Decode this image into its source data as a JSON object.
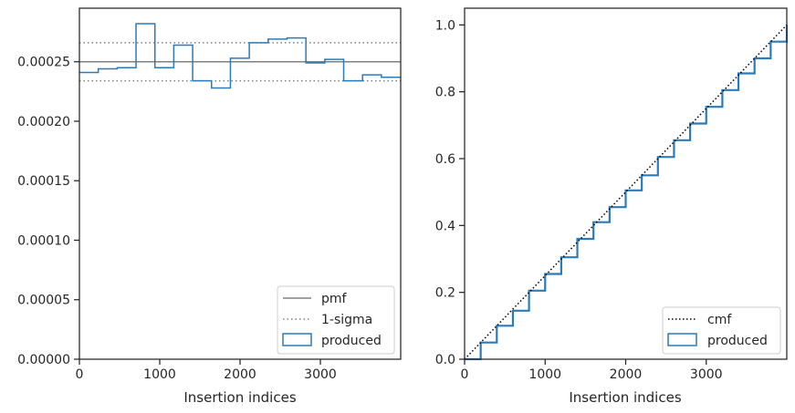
{
  "colors": {
    "produced": "#2b7bba",
    "pmf": "#808080",
    "sigma": "#808080",
    "cmf": "#000000",
    "axis": "#262626"
  },
  "chart_data": [
    {
      "type": "histogram",
      "xlabel": "Insertion indices",
      "ylabel": "",
      "xlim": [
        0,
        4000
      ],
      "ylim": [
        0,
        0.000295
      ],
      "x_ticks": [
        0,
        1000,
        2000,
        3000
      ],
      "x_tick_labels": [
        "0",
        "1000",
        "2000",
        "3000"
      ],
      "y_ticks": [
        0,
        5e-05,
        0.0001,
        0.00015,
        0.0002,
        0.00025
      ],
      "y_tick_labels": [
        "0.00000",
        "0.00005",
        "0.00010",
        "0.00015",
        "0.00020",
        "0.00025"
      ],
      "bin_edges": [
        0,
        235,
        470,
        705,
        940,
        1175,
        1410,
        1645,
        1880,
        2115,
        2350,
        2585,
        2820,
        3055,
        3290,
        3525,
        3760,
        4000
      ],
      "series": [
        {
          "name": "produced",
          "style": "step",
          "values": [
            0.000241,
            0.000244,
            0.000245,
            0.000282,
            0.000245,
            0.000264,
            0.000234,
            0.000228,
            0.000253,
            0.000266,
            0.000269,
            0.00027,
            0.000249,
            0.000252,
            0.000234,
            0.000239,
            0.000237
          ]
        },
        {
          "name": "pmf",
          "style": "solid",
          "y": 0.00025
        },
        {
          "name": "1-sigma",
          "style": "dotted",
          "y": [
            0.000234,
            0.000266
          ]
        }
      ],
      "legend": {
        "placement": "lower-right",
        "entries": [
          "pmf",
          "1-sigma",
          "produced"
        ]
      },
      "grid": false
    },
    {
      "type": "line",
      "xlabel": "Insertion indices",
      "ylabel": "",
      "xlim": [
        0,
        4000
      ],
      "ylim": [
        0,
        1.05
      ],
      "x_ticks": [
        0,
        1000,
        2000,
        3000
      ],
      "x_tick_labels": [
        "0",
        "1000",
        "2000",
        "3000"
      ],
      "y_ticks": [
        0,
        0.2,
        0.4,
        0.6,
        0.8,
        1.0
      ],
      "y_tick_labels": [
        "0.0",
        "0.2",
        "0.4",
        "0.6",
        "0.8",
        "1.0"
      ],
      "series": [
        {
          "name": "cmf",
          "style": "dotted",
          "x": [
            0,
            4000
          ],
          "y": [
            0,
            1.0
          ]
        },
        {
          "name": "produced",
          "style": "step",
          "x": [
            0,
            200,
            400,
            600,
            800,
            1000,
            1200,
            1400,
            1600,
            1800,
            2000,
            2200,
            2400,
            2600,
            2800,
            3000,
            3200,
            3400,
            3600,
            3800,
            4000
          ],
          "y": [
            0,
            0.05,
            0.1,
            0.145,
            0.205,
            0.255,
            0.305,
            0.36,
            0.41,
            0.455,
            0.505,
            0.55,
            0.605,
            0.655,
            0.705,
            0.755,
            0.805,
            0.855,
            0.9,
            0.95,
            1.0
          ]
        }
      ],
      "legend": {
        "placement": "lower-right",
        "entries": [
          "cmf",
          "produced"
        ]
      },
      "grid": false
    }
  ]
}
